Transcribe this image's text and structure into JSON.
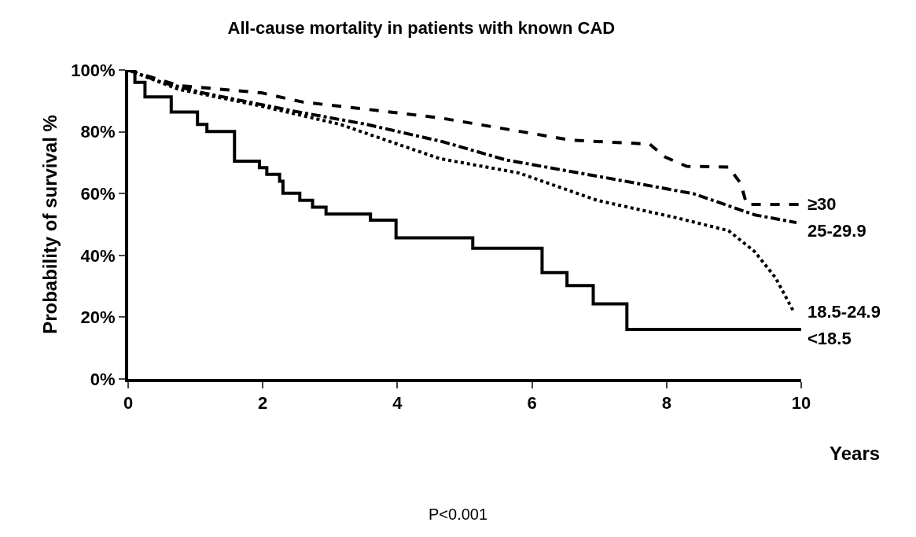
{
  "chart_data": {
    "type": "step",
    "title": "All-cause mortality in patients with known CAD",
    "xlabel": "Years",
    "ylabel": "Probability of survival %",
    "annotations": [
      "P<0.001"
    ],
    "xlim": [
      0,
      10
    ],
    "xticks": [
      0,
      2,
      4,
      6,
      8,
      10
    ],
    "ylim": [
      0,
      100
    ],
    "yticks": [
      {
        "value": 0,
        "label": "0%"
      },
      {
        "value": 20,
        "label": "20%"
      },
      {
        "value": 40,
        "label": "40%"
      },
      {
        "value": 60,
        "label": "60%"
      },
      {
        "value": 80,
        "label": "80%"
      },
      {
        "value": 100,
        "label": "100%"
      }
    ],
    "legend": false,
    "series": [
      {
        "name": "≥30",
        "type": "line",
        "color": "#000000",
        "line_style": "dashed",
        "x": [
          0,
          0.74,
          1.98,
          2.6,
          3.46,
          4.63,
          5.8,
          6.58,
          7.75,
          7.98,
          8.3,
          8.92,
          9.1,
          9.19,
          9.5,
          10
        ],
        "values": [
          100,
          95,
          92.6,
          89.6,
          87.5,
          84.5,
          80.2,
          77.3,
          76,
          71.8,
          68.8,
          68.6,
          63.3,
          56.5,
          56.5,
          56.5
        ]
      },
      {
        "name": "25-29.9",
        "type": "line",
        "color": "#000000",
        "line_style": "dashdot",
        "x": [
          0,
          0.5,
          1.13,
          2.48,
          3.54,
          4.67,
          5.61,
          7.36,
          8.41,
          9.31,
          9.93
        ],
        "values": [
          100,
          96,
          92.5,
          86.6,
          82.4,
          76.8,
          70.9,
          64.1,
          59.9,
          53.1,
          50.6
        ]
      },
      {
        "name": "18.5-24.9",
        "type": "line",
        "color": "#000000",
        "line_style": "dotted",
        "x": [
          0,
          0.74,
          1.98,
          3.15,
          4.63,
          5.8,
          6.97,
          8.14,
          8.92,
          9.31,
          9.62,
          9.89
        ],
        "values": [
          100,
          93.8,
          88.3,
          82.4,
          71.3,
          66.7,
          57.8,
          52.2,
          48,
          41.2,
          32.7,
          21.7
        ]
      },
      {
        "name": "<18.5",
        "color": "#000000",
        "line_style": "solid",
        "x": [
          0,
          0.1,
          0.25,
          0.64,
          1.03,
          1.17,
          1.58,
          1.95,
          2.06,
          2.25,
          2.3,
          2.55,
          2.74,
          2.94,
          3.6,
          3.98,
          5.12,
          6.15,
          6.52,
          6.91,
          7.41,
          10
        ],
        "values": [
          100,
          96,
          91.3,
          86.4,
          82.4,
          80.1,
          70.5,
          68.4,
          66.2,
          64,
          60.1,
          57.8,
          55.6,
          53.4,
          51.4,
          45.7,
          42.3,
          34.4,
          30.2,
          24.3,
          16,
          16
        ]
      }
    ]
  }
}
